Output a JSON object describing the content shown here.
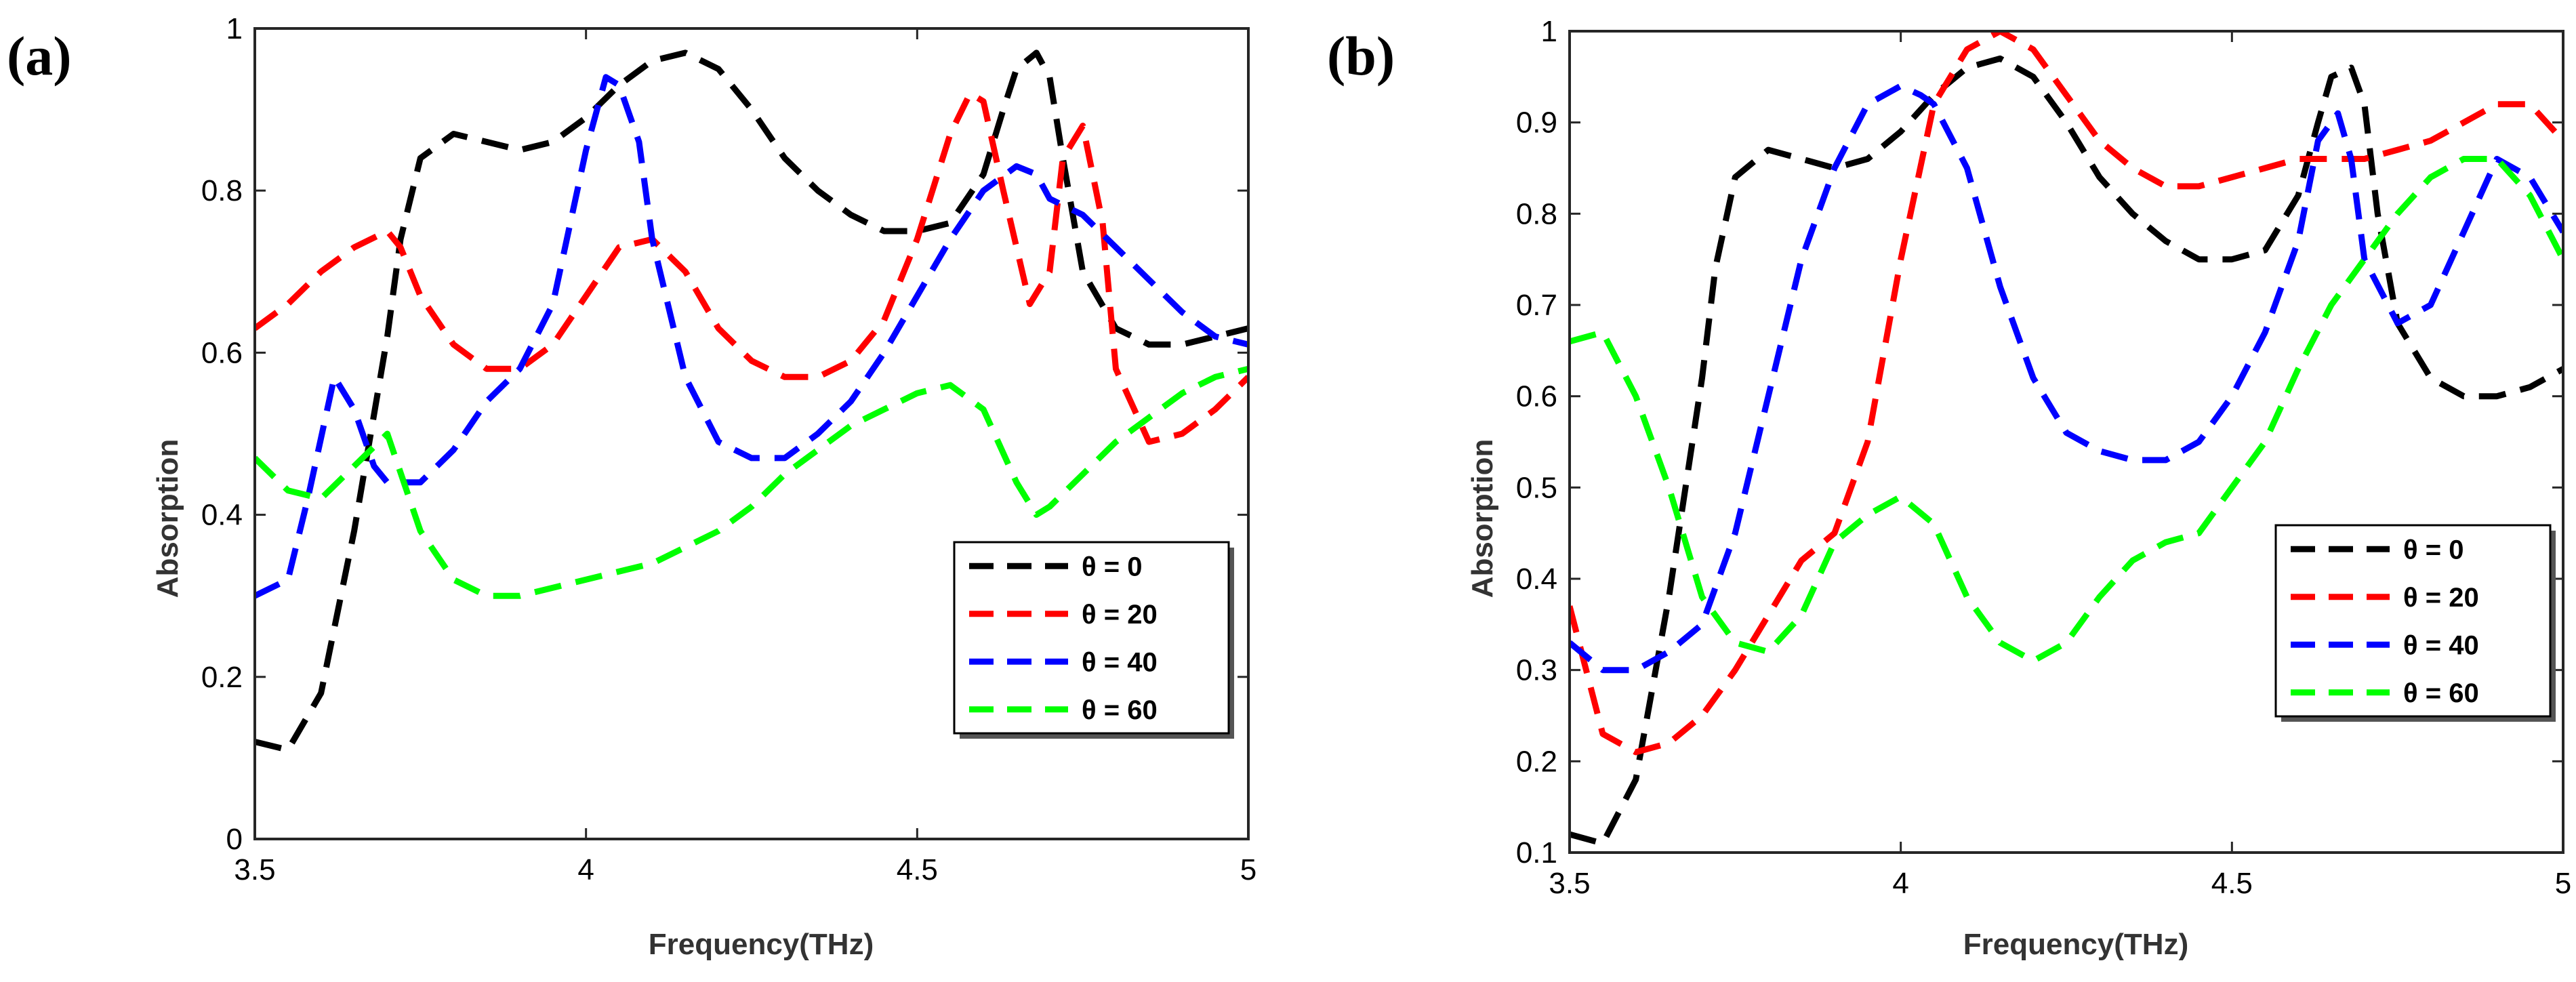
{
  "panels": [
    {
      "label": "(a)",
      "chart_data": {
        "type": "line",
        "title": "",
        "xlabel": "Frequency(THz)",
        "ylabel": "Absorption",
        "xlim": [
          3.5,
          5
        ],
        "ylim": [
          0,
          1
        ],
        "xticks": [
          3.5,
          4,
          4.5,
          5
        ],
        "xtick_labels": [
          "3.5",
          "4",
          "4.5",
          "5"
        ],
        "yticks": [
          0,
          0.2,
          0.4,
          0.6,
          0.8,
          1
        ],
        "ytick_labels": [
          "0",
          "0.2",
          "0.4",
          "0.6",
          "0.8",
          "1"
        ],
        "grid": false,
        "legend_position": "lower-right",
        "series": [
          {
            "name": "θ = 0",
            "theta_value": "0",
            "color": "#000000",
            "x": [
              3.5,
              3.55,
              3.6,
              3.65,
              3.7,
              3.72,
              3.75,
              3.8,
              3.85,
              3.9,
              3.95,
              4.0,
              4.05,
              4.1,
              4.15,
              4.2,
              4.25,
              4.3,
              4.35,
              4.4,
              4.45,
              4.5,
              4.55,
              4.6,
              4.63,
              4.65,
              4.68,
              4.7,
              4.72,
              4.75,
              4.8,
              4.85,
              4.9,
              4.95,
              5.0
            ],
            "y": [
              0.12,
              0.11,
              0.18,
              0.38,
              0.62,
              0.74,
              0.84,
              0.87,
              0.86,
              0.85,
              0.86,
              0.89,
              0.93,
              0.96,
              0.97,
              0.95,
              0.9,
              0.84,
              0.8,
              0.77,
              0.75,
              0.75,
              0.76,
              0.82,
              0.9,
              0.95,
              0.97,
              0.94,
              0.84,
              0.7,
              0.63,
              0.61,
              0.61,
              0.62,
              0.63
            ]
          },
          {
            "name": "θ = 20",
            "theta_value": "20",
            "color": "#ff0000",
            "x": [
              3.5,
              3.55,
              3.6,
              3.65,
              3.7,
              3.72,
              3.75,
              3.8,
              3.85,
              3.9,
              3.95,
              4.0,
              4.05,
              4.1,
              4.15,
              4.2,
              4.25,
              4.3,
              4.35,
              4.4,
              4.45,
              4.5,
              4.55,
              4.58,
              4.6,
              4.63,
              4.67,
              4.7,
              4.72,
              4.75,
              4.78,
              4.8,
              4.85,
              4.9,
              4.95,
              5.0
            ],
            "y": [
              0.63,
              0.66,
              0.7,
              0.73,
              0.75,
              0.73,
              0.67,
              0.61,
              0.58,
              0.58,
              0.61,
              0.67,
              0.73,
              0.74,
              0.7,
              0.63,
              0.59,
              0.57,
              0.57,
              0.59,
              0.64,
              0.74,
              0.87,
              0.92,
              0.91,
              0.8,
              0.66,
              0.7,
              0.84,
              0.88,
              0.76,
              0.58,
              0.49,
              0.5,
              0.53,
              0.57
            ]
          },
          {
            "name": "θ = 40",
            "theta_value": "40",
            "color": "#0000ff",
            "x": [
              3.5,
              3.55,
              3.58,
              3.62,
              3.65,
              3.68,
              3.7,
              3.75,
              3.8,
              3.85,
              3.9,
              3.95,
              4.0,
              4.03,
              4.05,
              4.08,
              4.1,
              4.15,
              4.2,
              4.25,
              4.3,
              4.35,
              4.4,
              4.45,
              4.5,
              4.55,
              4.6,
              4.65,
              4.68,
              4.7,
              4.75,
              4.8,
              4.85,
              4.9,
              4.95,
              5.0
            ],
            "y": [
              0.3,
              0.32,
              0.42,
              0.57,
              0.53,
              0.46,
              0.44,
              0.44,
              0.48,
              0.54,
              0.58,
              0.66,
              0.85,
              0.94,
              0.93,
              0.86,
              0.74,
              0.57,
              0.49,
              0.47,
              0.47,
              0.5,
              0.54,
              0.6,
              0.67,
              0.74,
              0.8,
              0.83,
              0.82,
              0.79,
              0.77,
              0.73,
              0.69,
              0.65,
              0.62,
              0.61
            ]
          },
          {
            "name": "θ = 60",
            "theta_value": "60",
            "color": "#00ff00",
            "x": [
              3.5,
              3.55,
              3.6,
              3.65,
              3.7,
              3.75,
              3.8,
              3.85,
              3.9,
              3.95,
              4.0,
              4.05,
              4.1,
              4.15,
              4.2,
              4.25,
              4.3,
              4.35,
              4.4,
              4.45,
              4.5,
              4.55,
              4.6,
              4.65,
              4.68,
              4.7,
              4.75,
              4.8,
              4.85,
              4.9,
              4.95,
              5.0
            ],
            "y": [
              0.47,
              0.43,
              0.42,
              0.46,
              0.5,
              0.38,
              0.32,
              0.3,
              0.3,
              0.31,
              0.32,
              0.33,
              0.34,
              0.36,
              0.38,
              0.41,
              0.45,
              0.48,
              0.51,
              0.53,
              0.55,
              0.56,
              0.53,
              0.44,
              0.4,
              0.41,
              0.45,
              0.49,
              0.52,
              0.55,
              0.57,
              0.58
            ]
          }
        ]
      }
    },
    {
      "label": "(b)",
      "chart_data": {
        "type": "line",
        "title": "",
        "xlabel": "Frequency(THz)",
        "ylabel": "Absorption",
        "xlim": [
          3.5,
          5
        ],
        "ylim": [
          0.1,
          1
        ],
        "xticks": [
          3.5,
          4,
          4.5,
          5
        ],
        "xtick_labels": [
          "3.5",
          "4",
          "4.5",
          "5"
        ],
        "yticks": [
          0.1,
          0.2,
          0.3,
          0.4,
          0.5,
          0.6,
          0.7,
          0.8,
          0.9,
          1
        ],
        "ytick_labels": [
          "0.1",
          "0.2",
          "0.3",
          "0.4",
          "0.5",
          "0.6",
          "0.7",
          "0.8",
          "0.9",
          "1"
        ],
        "grid": false,
        "legend_position": "lower-right",
        "series": [
          {
            "name": "θ = 0",
            "theta_value": "0",
            "color": "#000000",
            "x": [
              3.5,
              3.55,
              3.6,
              3.65,
              3.7,
              3.72,
              3.75,
              3.8,
              3.85,
              3.9,
              3.95,
              4.0,
              4.05,
              4.1,
              4.15,
              4.2,
              4.25,
              4.3,
              4.35,
              4.4,
              4.45,
              4.5,
              4.55,
              4.6,
              4.63,
              4.65,
              4.68,
              4.7,
              4.72,
              4.75,
              4.8,
              4.85,
              4.9,
              4.95,
              5.0
            ],
            "y": [
              0.12,
              0.11,
              0.18,
              0.38,
              0.62,
              0.74,
              0.84,
              0.87,
              0.86,
              0.85,
              0.86,
              0.89,
              0.93,
              0.96,
              0.97,
              0.95,
              0.9,
              0.84,
              0.8,
              0.77,
              0.75,
              0.75,
              0.76,
              0.82,
              0.9,
              0.95,
              0.96,
              0.92,
              0.8,
              0.68,
              0.62,
              0.6,
              0.6,
              0.61,
              0.63
            ]
          },
          {
            "name": "θ = 20",
            "theta_value": "20",
            "color": "#ff0000",
            "x": [
              3.5,
              3.55,
              3.6,
              3.65,
              3.7,
              3.75,
              3.8,
              3.85,
              3.9,
              3.95,
              4.0,
              4.05,
              4.1,
              4.15,
              4.2,
              4.25,
              4.3,
              4.35,
              4.4,
              4.45,
              4.5,
              4.55,
              4.6,
              4.65,
              4.7,
              4.75,
              4.8,
              4.85,
              4.9,
              4.95,
              5.0
            ],
            "y": [
              0.37,
              0.23,
              0.21,
              0.22,
              0.25,
              0.3,
              0.36,
              0.42,
              0.45,
              0.55,
              0.75,
              0.92,
              0.98,
              1.0,
              0.98,
              0.93,
              0.88,
              0.85,
              0.83,
              0.83,
              0.84,
              0.85,
              0.86,
              0.86,
              0.86,
              0.87,
              0.88,
              0.9,
              0.92,
              0.92,
              0.88
            ]
          },
          {
            "name": "θ = 40",
            "theta_value": "40",
            "color": "#0000ff",
            "x": [
              3.5,
              3.55,
              3.6,
              3.65,
              3.7,
              3.75,
              3.8,
              3.85,
              3.9,
              3.95,
              4.0,
              4.03,
              4.05,
              4.1,
              4.15,
              4.2,
              4.25,
              4.3,
              4.35,
              4.4,
              4.45,
              4.5,
              4.55,
              4.6,
              4.63,
              4.66,
              4.68,
              4.7,
              4.75,
              4.8,
              4.85,
              4.9,
              4.95,
              5.0
            ],
            "y": [
              0.33,
              0.3,
              0.3,
              0.32,
              0.35,
              0.45,
              0.6,
              0.75,
              0.85,
              0.92,
              0.94,
              0.93,
              0.92,
              0.85,
              0.72,
              0.62,
              0.56,
              0.54,
              0.53,
              0.53,
              0.55,
              0.6,
              0.67,
              0.77,
              0.88,
              0.91,
              0.86,
              0.75,
              0.68,
              0.7,
              0.78,
              0.86,
              0.84,
              0.78
            ]
          },
          {
            "name": "θ = 60",
            "theta_value": "60",
            "color": "#00ff00",
            "x": [
              3.5,
              3.55,
              3.6,
              3.65,
              3.7,
              3.75,
              3.8,
              3.85,
              3.9,
              3.95,
              4.0,
              4.05,
              4.1,
              4.15,
              4.2,
              4.25,
              4.3,
              4.35,
              4.4,
              4.45,
              4.5,
              4.55,
              4.6,
              4.65,
              4.7,
              4.75,
              4.8,
              4.85,
              4.9,
              4.95,
              5.0
            ],
            "y": [
              0.66,
              0.67,
              0.6,
              0.5,
              0.38,
              0.33,
              0.32,
              0.36,
              0.44,
              0.47,
              0.49,
              0.46,
              0.38,
              0.33,
              0.31,
              0.33,
              0.38,
              0.42,
              0.44,
              0.45,
              0.5,
              0.55,
              0.63,
              0.7,
              0.75,
              0.8,
              0.84,
              0.86,
              0.86,
              0.82,
              0.75
            ]
          }
        ]
      }
    }
  ]
}
